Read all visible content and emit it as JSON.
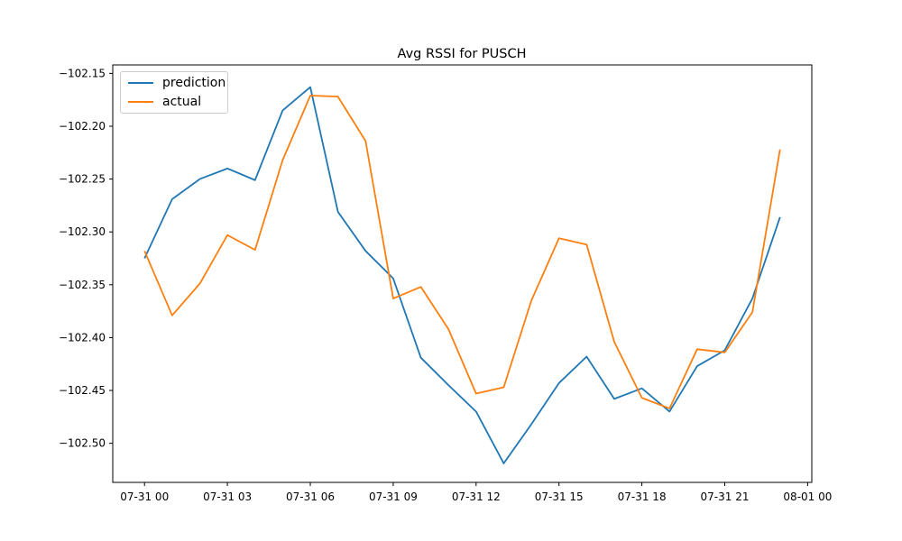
{
  "chart_data": {
    "type": "line",
    "title": "Avg RSSI for PUSCH",
    "xlabel": "",
    "ylabel": "",
    "x_ticks": [
      "07-31 00",
      "07-31 03",
      "07-31 06",
      "07-31 09",
      "07-31 12",
      "07-31 15",
      "07-31 18",
      "07-31 21",
      "08-01 00"
    ],
    "x_tick_hours": [
      0,
      3,
      6,
      9,
      12,
      15,
      18,
      21,
      24
    ],
    "y_ticks": [
      "−102.15",
      "−102.20",
      "−102.25",
      "−102.30",
      "−102.35",
      "−102.40",
      "−102.45",
      "−102.50"
    ],
    "y_tick_values": [
      -102.15,
      -102.2,
      -102.25,
      -102.3,
      -102.35,
      -102.4,
      -102.45,
      -102.5
    ],
    "xlim": [
      -1.15,
      24.15
    ],
    "ylim": [
      -102.537,
      -102.142
    ],
    "x_hours": [
      0,
      1,
      2,
      3,
      4,
      5,
      6,
      7,
      8,
      9,
      10,
      11,
      12,
      13,
      14,
      15,
      16,
      17,
      18,
      19,
      20,
      21,
      22,
      23
    ],
    "series": [
      {
        "name": "prediction",
        "color": "#1f77b4",
        "values": [
          -102.325,
          -102.269,
          -102.25,
          -102.24,
          -102.251,
          -102.185,
          -102.163,
          -102.281,
          -102.318,
          -102.344,
          -102.419,
          -102.445,
          -102.47,
          -102.519,
          -102.482,
          -102.443,
          -102.418,
          -102.458,
          -102.448,
          -102.47,
          -102.427,
          -102.412,
          -102.363,
          -102.286
        ]
      },
      {
        "name": "actual",
        "color": "#ff7f0e",
        "values": [
          -102.318,
          -102.379,
          -102.349,
          -102.303,
          -102.317,
          -102.232,
          -102.171,
          -102.172,
          -102.214,
          -102.363,
          -102.352,
          -102.392,
          -102.453,
          -102.447,
          -102.365,
          -102.306,
          -102.312,
          -102.404,
          -102.457,
          -102.467,
          -102.411,
          -102.414,
          -102.376,
          -102.222
        ]
      }
    ],
    "legend_position": "upper-left",
    "grid": false
  }
}
